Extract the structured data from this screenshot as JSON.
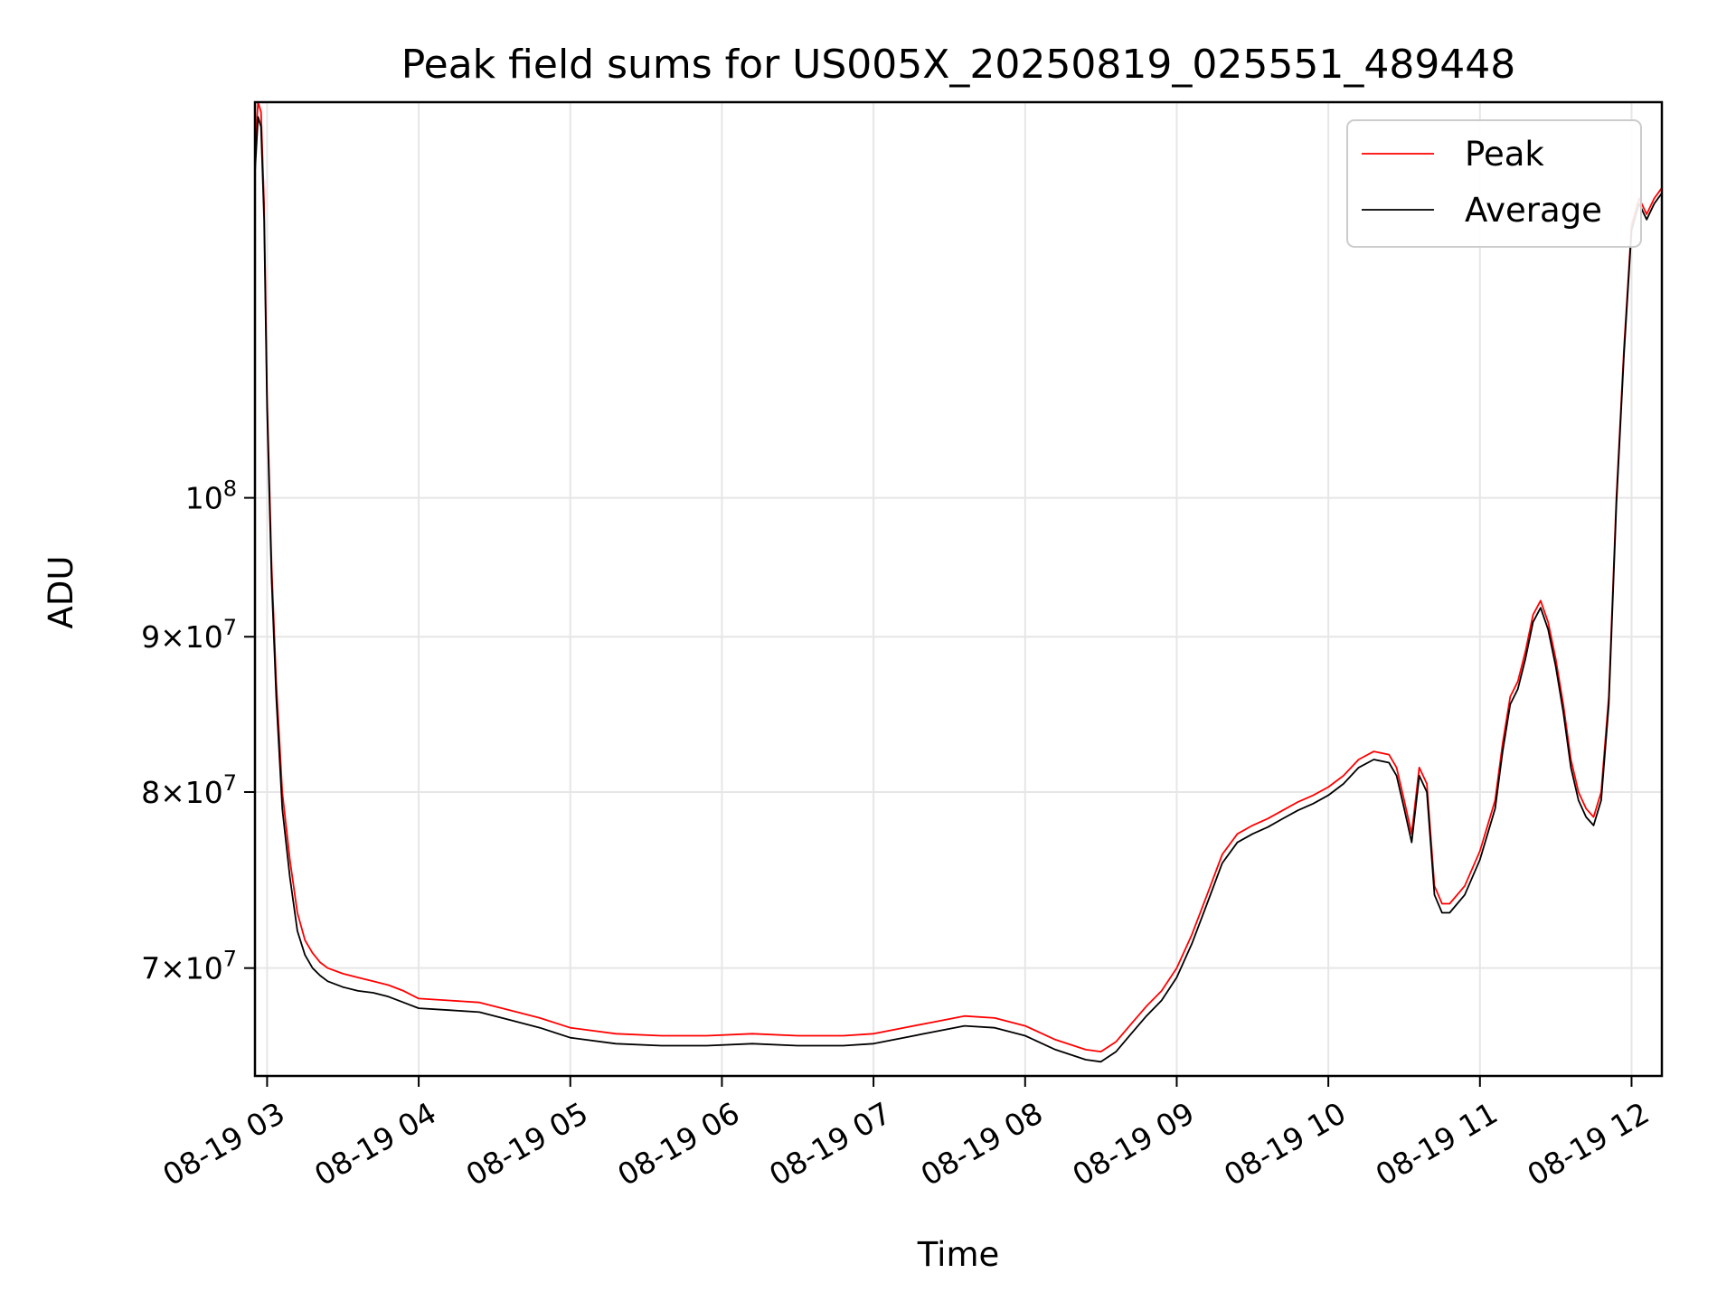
{
  "chart_data": {
    "type": "line",
    "title": "Peak field sums for US005X_20250819_025551_489448",
    "xlabel": "Time",
    "ylabel": "ADU",
    "yscale": "log",
    "grid": true,
    "legend_position": "top-right",
    "x_hours_range": [
      2.92,
      12.2
    ],
    "ylim": [
      64500000,
      135000000
    ],
    "x_tick_hours": [
      3,
      4,
      5,
      6,
      7,
      8,
      9,
      10,
      11,
      12
    ],
    "x_tick_labels": [
      "08-19 03",
      "08-19 04",
      "08-19 05",
      "08-19 06",
      "08-19 07",
      "08-19 08",
      "08-19 09",
      "08-19 10",
      "08-19 11",
      "08-19 12"
    ],
    "y_ticks": [
      {
        "value": 70000000,
        "mantissa": "7",
        "exp": "7"
      },
      {
        "value": 80000000,
        "mantissa": "8",
        "exp": "7"
      },
      {
        "value": 90000000,
        "mantissa": "9",
        "exp": "7"
      },
      {
        "value": 100000000,
        "mantissa": "",
        "exp": "8"
      }
    ],
    "series": [
      {
        "name": "Peak",
        "color": "#ff0000",
        "x_hours": [
          2.92,
          2.94,
          2.96,
          2.98,
          3.0,
          3.03,
          3.06,
          3.1,
          3.15,
          3.2,
          3.25,
          3.3,
          3.35,
          3.4,
          3.5,
          3.6,
          3.7,
          3.8,
          3.9,
          4.0,
          4.2,
          4.4,
          4.6,
          4.8,
          5.0,
          5.3,
          5.6,
          5.9,
          6.2,
          6.5,
          6.8,
          7.0,
          7.2,
          7.4,
          7.6,
          7.8,
          8.0,
          8.2,
          8.4,
          8.5,
          8.6,
          8.7,
          8.8,
          8.9,
          9.0,
          9.1,
          9.2,
          9.3,
          9.4,
          9.5,
          9.6,
          9.7,
          9.8,
          9.9,
          10.0,
          10.1,
          10.2,
          10.3,
          10.4,
          10.45,
          10.5,
          10.55,
          10.6,
          10.65,
          10.7,
          10.75,
          10.8,
          10.9,
          11.0,
          11.1,
          11.15,
          11.2,
          11.25,
          11.3,
          11.35,
          11.4,
          11.45,
          11.5,
          11.55,
          11.6,
          11.65,
          11.7,
          11.75,
          11.8,
          11.85,
          11.9,
          11.95,
          12.0,
          12.05,
          12.1,
          12.15,
          12.2
        ],
        "values": [
          130000000,
          135000000,
          134000000,
          125000000,
          108000000,
          95000000,
          87000000,
          80000000,
          76000000,
          73000000,
          71500000,
          70800000,
          70300000,
          70000000,
          69700000,
          69500000,
          69300000,
          69100000,
          68800000,
          68400000,
          68300000,
          68200000,
          67800000,
          67400000,
          66900000,
          66600000,
          66500000,
          66500000,
          66600000,
          66500000,
          66500000,
          66600000,
          66900000,
          67200000,
          67500000,
          67400000,
          67000000,
          66300000,
          65800000,
          65700000,
          66200000,
          67100000,
          68000000,
          68800000,
          70000000,
          71800000,
          74000000,
          76300000,
          77500000,
          78000000,
          78400000,
          78900000,
          79400000,
          79800000,
          80300000,
          81000000,
          82000000,
          82500000,
          82300000,
          81500000,
          79500000,
          77500000,
          81500000,
          80500000,
          74500000,
          73500000,
          73500000,
          74500000,
          76500000,
          79500000,
          83000000,
          86000000,
          87000000,
          89000000,
          91500000,
          92500000,
          91000000,
          88500000,
          85500000,
          82000000,
          80000000,
          79000000,
          78500000,
          80000000,
          86000000,
          100000000,
          112000000,
          123000000,
          125500000,
          124000000,
          125500000,
          126500000
        ]
      },
      {
        "name": "Average",
        "color": "#000000",
        "x_hours": [
          2.92,
          2.94,
          2.96,
          2.98,
          3.0,
          3.03,
          3.06,
          3.1,
          3.15,
          3.2,
          3.25,
          3.3,
          3.35,
          3.4,
          3.5,
          3.6,
          3.7,
          3.8,
          3.9,
          4.0,
          4.2,
          4.4,
          4.6,
          4.8,
          5.0,
          5.3,
          5.6,
          5.9,
          6.2,
          6.5,
          6.8,
          7.0,
          7.2,
          7.4,
          7.6,
          7.8,
          8.0,
          8.2,
          8.4,
          8.5,
          8.6,
          8.7,
          8.8,
          8.9,
          9.0,
          9.1,
          9.2,
          9.3,
          9.4,
          9.5,
          9.6,
          9.7,
          9.8,
          9.9,
          10.0,
          10.1,
          10.2,
          10.3,
          10.4,
          10.45,
          10.5,
          10.55,
          10.6,
          10.65,
          10.7,
          10.75,
          10.8,
          10.9,
          11.0,
          11.1,
          11.15,
          11.2,
          11.25,
          11.3,
          11.35,
          11.4,
          11.45,
          11.5,
          11.55,
          11.6,
          11.65,
          11.7,
          11.75,
          11.8,
          11.85,
          11.9,
          11.95,
          12.0,
          12.05,
          12.1,
          12.15,
          12.2
        ],
        "values": [
          128000000,
          133500000,
          132500000,
          123500000,
          107000000,
          94000000,
          86000000,
          79000000,
          75000000,
          72000000,
          70700000,
          70000000,
          69600000,
          69300000,
          69000000,
          68800000,
          68700000,
          68500000,
          68200000,
          67900000,
          67800000,
          67700000,
          67300000,
          66900000,
          66400000,
          66100000,
          66000000,
          66000000,
          66100000,
          66000000,
          66000000,
          66100000,
          66400000,
          66700000,
          67000000,
          66900000,
          66500000,
          65800000,
          65300000,
          65200000,
          65700000,
          66600000,
          67500000,
          68300000,
          69500000,
          71300000,
          73500000,
          75800000,
          77000000,
          77500000,
          77900000,
          78400000,
          78900000,
          79300000,
          79800000,
          80500000,
          81500000,
          82000000,
          81800000,
          81000000,
          79000000,
          77000000,
          81000000,
          80000000,
          74000000,
          73000000,
          73000000,
          74000000,
          76000000,
          79000000,
          82500000,
          85500000,
          86500000,
          88500000,
          91000000,
          92000000,
          90500000,
          88000000,
          85000000,
          81500000,
          79500000,
          78500000,
          78000000,
          79500000,
          85500000,
          99500000,
          111500000,
          122500000,
          125000000,
          123500000,
          125000000,
          126000000
        ]
      }
    ]
  }
}
